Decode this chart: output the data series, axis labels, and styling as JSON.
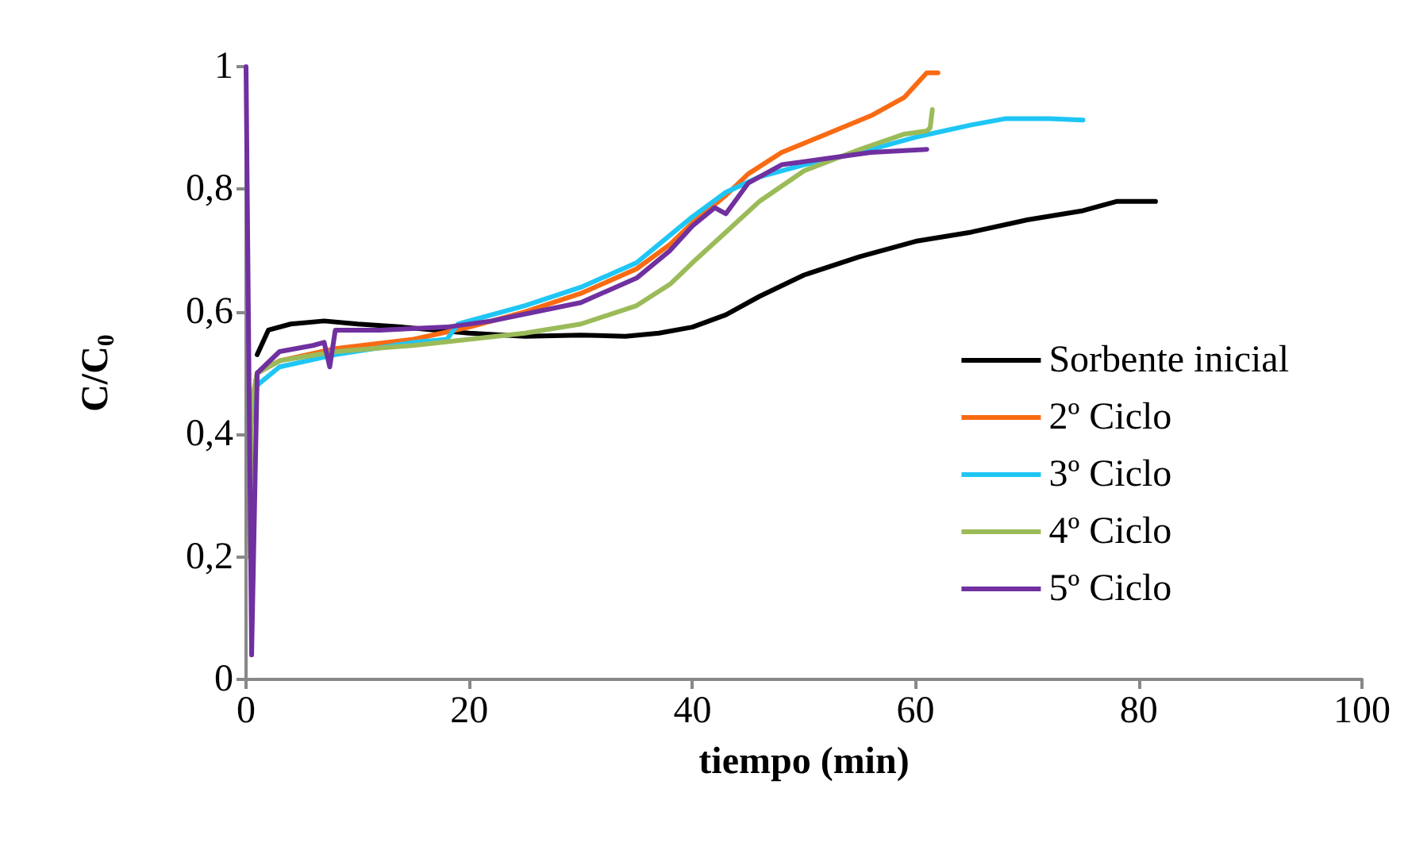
{
  "chart_data": {
    "type": "line",
    "xlabel": "tiempo (min)",
    "ylabel": "C/C$_{0}$",
    "xlim": [
      0,
      100
    ],
    "xticks": [
      0,
      20,
      40,
      60,
      80,
      100
    ],
    "ylim": [
      0,
      1
    ],
    "yticks": [
      0,
      {
        "value": 0.2,
        "label": "0,2"
      },
      {
        "value": 0.4,
        "label": "0,4"
      },
      {
        "value": 0.6,
        "label": "0,6"
      },
      {
        "value": 0.8,
        "label": "0,8"
      },
      1
    ],
    "grid": false,
    "legend": "right",
    "marker": "none",
    "line_style": "solid",
    "series": [
      {
        "name": "Sorbente inicial",
        "color": "#000000",
        "x": [
          1,
          2,
          4,
          7,
          10,
          14,
          20,
          25,
          30,
          34,
          37,
          40,
          43,
          46,
          50,
          55,
          60,
          65,
          70,
          75,
          78,
          81.5
        ],
        "values": [
          0.53,
          0.57,
          0.58,
          0.585,
          0.58,
          0.575,
          0.565,
          0.56,
          0.562,
          0.56,
          0.565,
          0.575,
          0.595,
          0.625,
          0.66,
          0.69,
          0.715,
          0.73,
          0.75,
          0.765,
          0.78,
          0.78
        ]
      },
      {
        "name": "2º Ciclo",
        "color": "#f96b13",
        "x": [
          0.5,
          1,
          3,
          8,
          15,
          20,
          25,
          30,
          35,
          38,
          40,
          43,
          45,
          48,
          52,
          56,
          59,
          61,
          62
        ],
        "values": [
          0.45,
          0.5,
          0.52,
          0.54,
          0.555,
          0.575,
          0.6,
          0.63,
          0.67,
          0.71,
          0.745,
          0.79,
          0.825,
          0.86,
          0.89,
          0.92,
          0.95,
          0.99,
          0.99
        ]
      },
      {
        "name": "3º Ciclo",
        "color": "#1fc6f5",
        "x": [
          0.5,
          1,
          3,
          8,
          15,
          18,
          19,
          25,
          30,
          35,
          40,
          43,
          46,
          50,
          55,
          60,
          65,
          68,
          72,
          75
        ],
        "values": [
          0.42,
          0.48,
          0.51,
          0.53,
          0.55,
          0.555,
          0.58,
          0.61,
          0.64,
          0.68,
          0.755,
          0.795,
          0.82,
          0.84,
          0.86,
          0.885,
          0.905,
          0.915,
          0.915,
          0.913
        ]
      },
      {
        "name": "4º Ciclo",
        "color": "#9bbb59",
        "x": [
          0.3,
          0.5,
          1,
          3,
          8,
          15,
          20,
          25,
          30,
          35,
          38,
          40,
          43,
          46,
          50,
          55,
          59,
          61,
          61.3,
          61.5
        ],
        "values": [
          0.2,
          0.45,
          0.5,
          0.52,
          0.535,
          0.545,
          0.555,
          0.565,
          0.58,
          0.61,
          0.645,
          0.68,
          0.73,
          0.78,
          0.83,
          0.865,
          0.89,
          0.895,
          0.9,
          0.93
        ]
      },
      {
        "name": "5º Ciclo",
        "color": "#7030a0",
        "x": [
          0,
          0.5,
          1,
          3,
          6,
          7,
          7.5,
          8,
          12,
          18,
          22,
          26,
          30,
          35,
          38,
          40,
          42,
          43,
          45,
          48,
          52,
          56,
          61
        ],
        "values": [
          1.0,
          0.04,
          0.5,
          0.535,
          0.545,
          0.55,
          0.51,
          0.57,
          0.57,
          0.575,
          0.585,
          0.6,
          0.615,
          0.655,
          0.7,
          0.74,
          0.77,
          0.76,
          0.81,
          0.84,
          0.85,
          0.86,
          0.865
        ]
      }
    ]
  }
}
